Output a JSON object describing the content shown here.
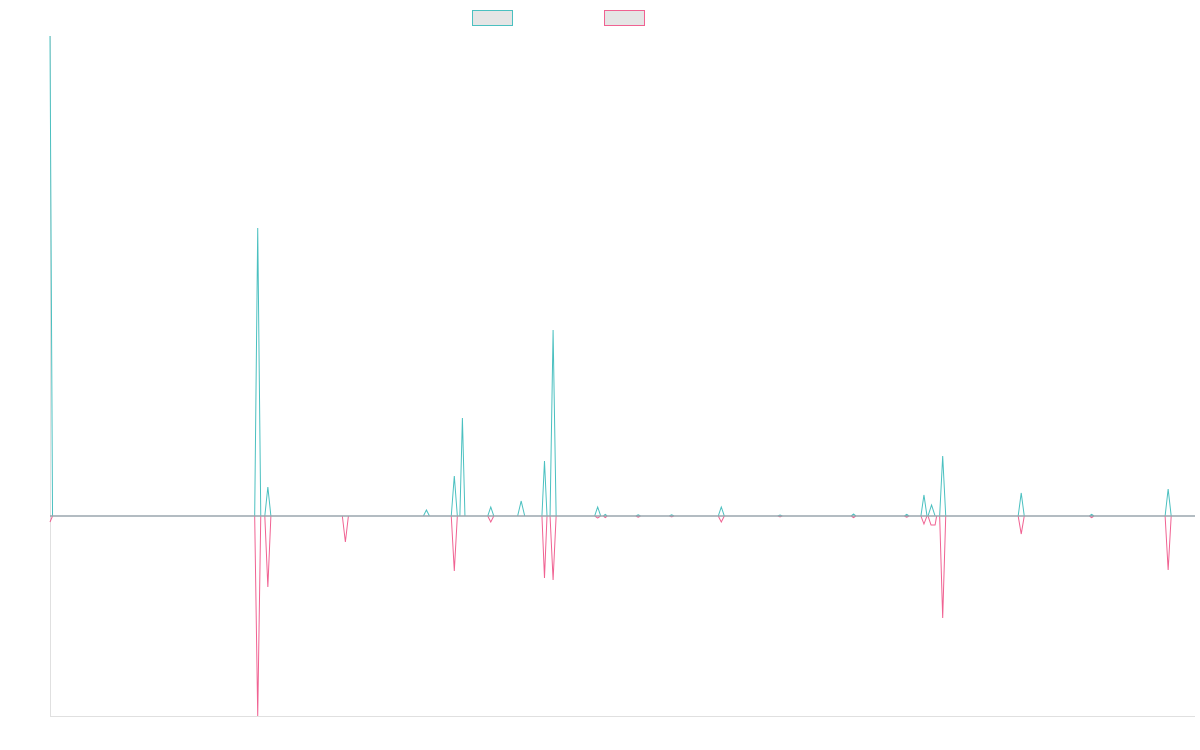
{
  "chart_data": {
    "type": "line",
    "title": "",
    "xlabel": "",
    "ylabel": "",
    "ylim": [
      -100,
      240
    ],
    "legend": {
      "placement": "top-center",
      "entries": [
        {
          "color": "#4bc0c0",
          "fill": "#e5e5e5"
        },
        {
          "color": "#f06292",
          "fill": "#e5e5e5"
        }
      ]
    },
    "grid": false,
    "series": [
      {
        "color": "#4bc0c0",
        "points": [
          [
            0,
            240
          ],
          [
            0.5,
            0
          ],
          [
            40,
            0
          ],
          [
            40.4,
            0
          ],
          [
            41,
            144
          ],
          [
            41.6,
            0
          ],
          [
            42.4,
            0
          ],
          [
            43,
            14.5
          ],
          [
            43.6,
            0
          ],
          [
            73.7,
            0
          ],
          [
            74.3,
            3
          ],
          [
            74.9,
            0
          ],
          [
            79.2,
            0
          ],
          [
            79.8,
            20
          ],
          [
            80.4,
            0
          ],
          [
            80.9,
            0
          ],
          [
            81.4,
            49
          ],
          [
            81.9,
            0
          ],
          [
            86.4,
            0
          ],
          [
            87,
            4.5
          ],
          [
            87.6,
            0
          ],
          [
            92.3,
            0
          ],
          [
            93,
            7.5
          ],
          [
            93.7,
            0
          ],
          [
            97.1,
            0
          ],
          [
            97.6,
            27.5
          ],
          [
            98.1,
            0
          ],
          [
            98.7,
            0
          ],
          [
            99.3,
            93
          ],
          [
            99.9,
            0
          ],
          [
            107.5,
            0
          ],
          [
            108.1,
            4.5
          ],
          [
            108.7,
            0
          ],
          [
            109.2,
            0
          ],
          [
            109.6,
            0.8
          ],
          [
            110,
            0
          ],
          [
            115.6,
            0
          ],
          [
            116.1,
            0.6
          ],
          [
            116.6,
            0
          ],
          [
            122.2,
            0
          ],
          [
            122.7,
            0.6
          ],
          [
            123.2,
            0
          ],
          [
            131.9,
            0
          ],
          [
            132.5,
            4.5
          ],
          [
            133.1,
            0
          ],
          [
            143.6,
            0
          ],
          [
            144.1,
            0.5
          ],
          [
            144.6,
            0
          ],
          [
            158.1,
            0
          ],
          [
            158.6,
            1
          ],
          [
            159.1,
            0
          ],
          [
            168.6,
            0
          ],
          [
            169.1,
            0.8
          ],
          [
            169.6,
            0
          ],
          [
            171.9,
            0
          ],
          [
            172.5,
            10.5
          ],
          [
            173.1,
            0
          ],
          [
            173.3,
            0
          ],
          [
            174,
            5.5
          ],
          [
            174.7,
            0
          ],
          [
            175.6,
            0
          ],
          [
            176.2,
            30
          ],
          [
            176.8,
            0
          ],
          [
            191.1,
            0
          ],
          [
            191.7,
            11.5
          ],
          [
            192.3,
            0
          ],
          [
            205.1,
            0
          ],
          [
            205.6,
            0.8
          ],
          [
            206.1,
            0
          ],
          [
            220.1,
            0
          ],
          [
            220.7,
            13.5
          ],
          [
            221.3,
            0
          ],
          [
            226,
            0
          ]
        ]
      },
      {
        "color": "#f06292",
        "points": [
          [
            0,
            -3
          ],
          [
            0.5,
            0
          ],
          [
            40,
            0
          ],
          [
            40.4,
            0
          ],
          [
            41,
            -100
          ],
          [
            41.6,
            0
          ],
          [
            42.4,
            0
          ],
          [
            43,
            -35.5
          ],
          [
            43.6,
            0
          ],
          [
            57.7,
            0
          ],
          [
            58.3,
            -13
          ],
          [
            58.9,
            0
          ],
          [
            79.2,
            0
          ],
          [
            79.8,
            -27.5
          ],
          [
            80.4,
            0
          ],
          [
            86.4,
            0
          ],
          [
            87,
            -3
          ],
          [
            87.6,
            0
          ],
          [
            97.1,
            0
          ],
          [
            97.6,
            -31
          ],
          [
            98.1,
            0
          ],
          [
            98.7,
            0
          ],
          [
            99.3,
            -32
          ],
          [
            99.9,
            0
          ],
          [
            107.5,
            0
          ],
          [
            108.1,
            -1
          ],
          [
            108.7,
            0
          ],
          [
            109.2,
            0
          ],
          [
            109.6,
            -0.8
          ],
          [
            110,
            0
          ],
          [
            115.6,
            0
          ],
          [
            116.1,
            -0.6
          ],
          [
            116.6,
            0
          ],
          [
            122.2,
            0
          ],
          [
            122.7,
            -0.4
          ],
          [
            123.2,
            0
          ],
          [
            131.9,
            0
          ],
          [
            132.5,
            -3
          ],
          [
            133.1,
            0
          ],
          [
            143.6,
            0
          ],
          [
            144.1,
            -0.4
          ],
          [
            144.6,
            0
          ],
          [
            158.1,
            0
          ],
          [
            158.6,
            -0.8
          ],
          [
            159.1,
            0
          ],
          [
            168.6,
            0
          ],
          [
            169.1,
            -0.6
          ],
          [
            169.6,
            0
          ],
          [
            171.9,
            0
          ],
          [
            172.5,
            -4
          ],
          [
            173.1,
            0
          ],
          [
            173.3,
            0
          ],
          [
            173.9,
            -4.5
          ],
          [
            174.7,
            -4.5
          ],
          [
            175,
            0
          ],
          [
            175.6,
            0
          ],
          [
            176.2,
            -51
          ],
          [
            176.8,
            0
          ],
          [
            191.1,
            0
          ],
          [
            191.7,
            -9
          ],
          [
            192.3,
            0
          ],
          [
            205.1,
            0
          ],
          [
            205.6,
            -0.8
          ],
          [
            206.1,
            0
          ],
          [
            220.1,
            0
          ],
          [
            220.7,
            -27
          ],
          [
            221.3,
            0
          ],
          [
            226,
            0
          ]
        ]
      }
    ]
  }
}
